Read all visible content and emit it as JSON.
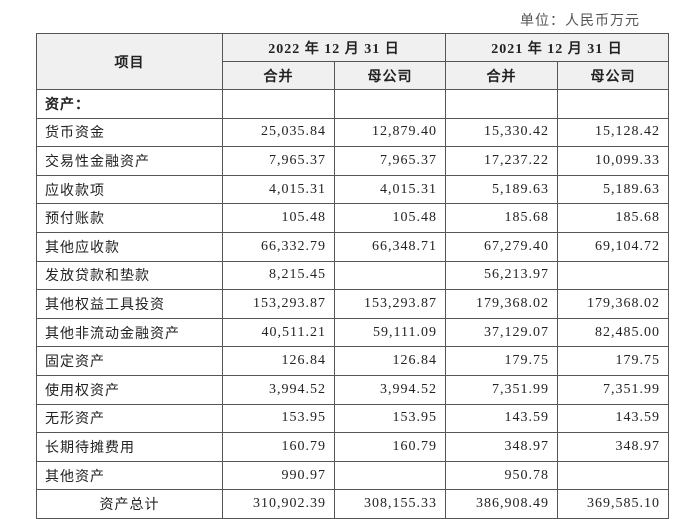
{
  "unit": "单位：人民币万元",
  "table": {
    "header": {
      "item": "项目",
      "periods": [
        {
          "label": "2022 年 12 月 31 日",
          "columns": [
            "合并",
            "母公司"
          ]
        },
        {
          "label": "2021 年 12 月 31 日",
          "columns": [
            "合并",
            "母公司"
          ]
        }
      ]
    },
    "rows": [
      {
        "label": "资产：",
        "values": [
          null,
          null,
          null,
          null
        ]
      },
      {
        "label": "货币资金",
        "values": [
          "25,035.84",
          "12,879.40",
          "15,330.42",
          "15,128.42"
        ]
      },
      {
        "label": "交易性金融资产",
        "values": [
          "7,965.37",
          "7,965.37",
          "17,237.22",
          "10,099.33"
        ]
      },
      {
        "label": "应收款项",
        "values": [
          "4,015.31",
          "4,015.31",
          "5,189.63",
          "5,189.63"
        ]
      },
      {
        "label": "预付账款",
        "values": [
          "105.48",
          "105.48",
          "185.68",
          "185.68"
        ]
      },
      {
        "label": "其他应收款",
        "values": [
          "66,332.79",
          "66,348.71",
          "67,279.40",
          "69,104.72"
        ]
      },
      {
        "label": "发放贷款和垫款",
        "values": [
          "8,215.45",
          null,
          "56,213.97",
          null
        ]
      },
      {
        "label": "其他权益工具投资",
        "values": [
          "153,293.87",
          "153,293.87",
          "179,368.02",
          "179,368.02"
        ]
      },
      {
        "label": "其他非流动金融资产",
        "values": [
          "40,511.21",
          "59,111.09",
          "37,129.07",
          "82,485.00"
        ]
      },
      {
        "label": "固定资产",
        "values": [
          "126.84",
          "126.84",
          "179.75",
          "179.75"
        ]
      },
      {
        "label": "使用权资产",
        "values": [
          "3,994.52",
          "3,994.52",
          "7,351.99",
          "7,351.99"
        ]
      },
      {
        "label": "无形资产",
        "values": [
          "153.95",
          "153.95",
          "143.59",
          "143.59"
        ]
      },
      {
        "label": "长期待摊费用",
        "values": [
          "160.79",
          "160.79",
          "348.97",
          "348.97"
        ]
      },
      {
        "label": "其他资产",
        "values": [
          "990.97",
          null,
          "950.78",
          null
        ]
      },
      {
        "label": "资产总计",
        "values": [
          "310,902.39",
          "308,155.33",
          "386,908.49",
          "369,585.10"
        ]
      }
    ]
  }
}
